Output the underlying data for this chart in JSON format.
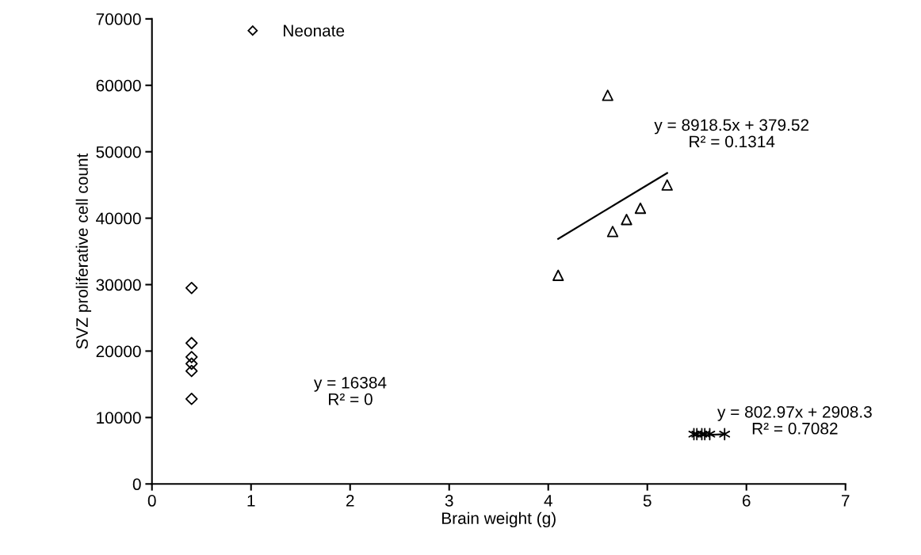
{
  "chart_data": {
    "type": "scatter",
    "xlabel": "Brain weight (g)",
    "ylabel": "SVZ proliferative cell count",
    "xlim": [
      0,
      7
    ],
    "xticks": [
      0,
      1,
      2,
      3,
      4,
      5,
      6,
      7
    ],
    "ylim": [
      0,
      70000
    ],
    "yticks": [
      0,
      10000,
      20000,
      30000,
      40000,
      50000,
      60000,
      70000
    ],
    "grid": false,
    "legend": "top left",
    "series": [
      {
        "name": "Neonate",
        "marker": "diamond",
        "color": "#000000",
        "x": [
          0.4,
          0.4,
          0.4,
          0.4,
          0.4,
          0.4
        ],
        "values": [
          29500,
          21200,
          19100,
          18100,
          17000,
          12800
        ]
      },
      {
        "marker": "triangle",
        "color": "#000000",
        "x": [
          4.1,
          4.6,
          4.65,
          4.79,
          4.93,
          5.2
        ],
        "values": [
          31400,
          58500,
          38000,
          39800,
          41500,
          45000
        ]
      },
      {
        "marker": "cross",
        "color": "#000000",
        "x": [
          5.47,
          5.5,
          5.55,
          5.58,
          5.63,
          5.78
        ],
        "values": [
          7500,
          7500,
          7500,
          7500,
          7500,
          7500
        ]
      },
      {
        "type": "line",
        "marker": "none",
        "color": "#000000",
        "x": [
          4.1,
          5.2
        ],
        "values": [
          36900,
          46800
        ]
      },
      {
        "type": "line",
        "marker": "none",
        "color": "#000000",
        "x": [
          5.47,
          5.78
        ],
        "values": [
          7300,
          7500
        ]
      }
    ],
    "annotations": [
      "y = 8918.5x + 379.52\nR² = 0.1314",
      "y = 16384\nR² = 0",
      "y = 802.97x + 2908.3\nR² = 0.7082"
    ]
  }
}
